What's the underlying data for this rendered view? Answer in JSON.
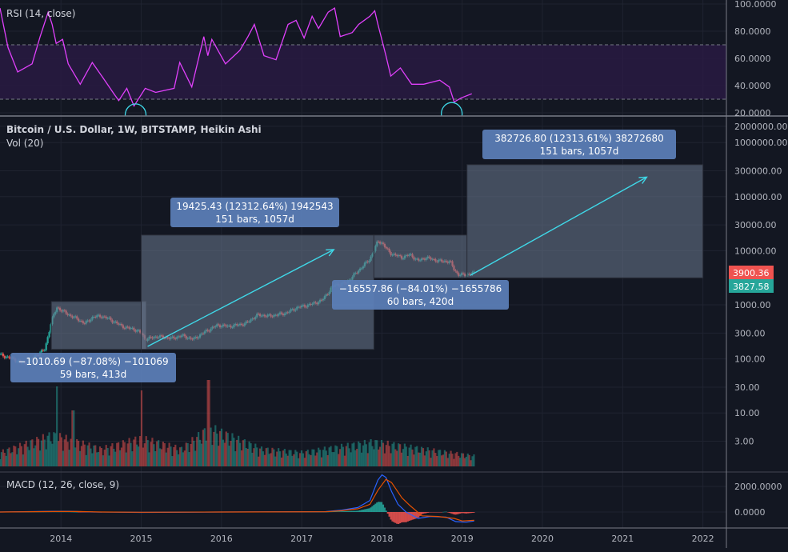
{
  "panes": {
    "rsi_title": "RSI (14, close)",
    "main_title": "Bitcoin / U.S. Dollar, 1W, BITSTAMP, Heikin Ashi",
    "vol_title": "Vol (20)",
    "macd_title": "MACD (12, 26, close, 9)"
  },
  "colors": {
    "background": "#131722",
    "up": "#26a69a",
    "down": "#ef5350",
    "rsi": "#e040fb",
    "rsi_band": "#2a1a45",
    "macd": "#2962ff",
    "signal": "#e65100",
    "annotation": "#3fd8e8",
    "measure_box": "#6b7a8f",
    "tooltip": "#5b7fb8"
  },
  "price_tags": {
    "last": "3900.36",
    "prev": "3827.58"
  },
  "chart_data": [
    {
      "type": "line",
      "title": "RSI (14, close)",
      "yscale": "linear",
      "ylim": [
        20,
        100
      ],
      "yticks": [
        "100.0000",
        "80.0000",
        "60.0000",
        "40.0000",
        "20.0000"
      ],
      "ytick_values": [
        100,
        80,
        60,
        40,
        20
      ],
      "bands": [
        30,
        70
      ],
      "points": [
        [
          2013.24,
          97
        ],
        [
          2013.34,
          68
        ],
        [
          2013.46,
          50
        ],
        [
          2013.64,
          56
        ],
        [
          2013.74,
          76
        ],
        [
          2013.84,
          94
        ],
        [
          2013.89,
          85
        ],
        [
          2013.94,
          71
        ],
        [
          2014.02,
          74
        ],
        [
          2014.09,
          56
        ],
        [
          2014.24,
          41
        ],
        [
          2014.39,
          57
        ],
        [
          2014.52,
          46
        ],
        [
          2014.66,
          34
        ],
        [
          2014.72,
          29
        ],
        [
          2014.82,
          38
        ],
        [
          2014.91,
          25
        ],
        [
          2015.05,
          38
        ],
        [
          2015.18,
          35
        ],
        [
          2015.41,
          38
        ],
        [
          2015.48,
          57
        ],
        [
          2015.63,
          39
        ],
        [
          2015.78,
          76
        ],
        [
          2015.83,
          62
        ],
        [
          2015.88,
          74
        ],
        [
          2016.05,
          56
        ],
        [
          2016.23,
          66
        ],
        [
          2016.33,
          76
        ],
        [
          2016.41,
          85
        ],
        [
          2016.53,
          62
        ],
        [
          2016.68,
          59
        ],
        [
          2016.83,
          85
        ],
        [
          2016.93,
          88
        ],
        [
          2017.03,
          75
        ],
        [
          2017.13,
          91
        ],
        [
          2017.21,
          82
        ],
        [
          2017.33,
          94
        ],
        [
          2017.41,
          97
        ],
        [
          2017.48,
          76
        ],
        [
          2017.63,
          79
        ],
        [
          2017.71,
          85
        ],
        [
          2017.85,
          91
        ],
        [
          2017.91,
          95
        ],
        [
          2017.95,
          85
        ],
        [
          2018.05,
          62
        ],
        [
          2018.11,
          47
        ],
        [
          2018.23,
          53
        ],
        [
          2018.37,
          41
        ],
        [
          2018.52,
          41
        ],
        [
          2018.72,
          44
        ],
        [
          2018.84,
          39
        ],
        [
          2018.9,
          28
        ],
        [
          2018.99,
          31
        ],
        [
          2019.12,
          34
        ]
      ],
      "circled_lows": [
        [
          2014.93,
          23
        ],
        [
          2018.87,
          24
        ]
      ]
    },
    {
      "type": "candlestick",
      "title": "Bitcoin / U.S. Dollar, 1W, BITSTAMP, Heikin Ashi",
      "yscale": "log",
      "yticks": [
        "2000000.00",
        "1000000.00",
        "300000.00",
        "100000.00",
        "30000.00",
        "10000.00",
        "1000.00",
        "300.00",
        "100.00",
        "30.00",
        "10.00",
        "3.00"
      ],
      "ytick_values": [
        2000000,
        1000000,
        300000,
        100000,
        30000,
        10000,
        1000,
        300,
        100,
        30,
        10,
        3
      ],
      "price_path": [
        [
          2013.24,
          120
        ],
        [
          2013.4,
          100
        ],
        [
          2013.55,
          80
        ],
        [
          2013.7,
          120
        ],
        [
          2013.8,
          150
        ],
        [
          2013.88,
          500
        ],
        [
          2013.95,
          900
        ],
        [
          2014.0,
          800
        ],
        [
          2014.1,
          650
        ],
        [
          2014.2,
          550
        ],
        [
          2014.3,
          450
        ],
        [
          2014.4,
          600
        ],
        [
          2014.5,
          620
        ],
        [
          2014.6,
          550
        ],
        [
          2014.7,
          450
        ],
        [
          2014.8,
          380
        ],
        [
          2014.9,
          360
        ],
        [
          2015.0,
          300
        ],
        [
          2015.05,
          230
        ],
        [
          2015.2,
          260
        ],
        [
          2015.4,
          240
        ],
        [
          2015.5,
          270
        ],
        [
          2015.65,
          230
        ],
        [
          2015.8,
          320
        ],
        [
          2015.95,
          420
        ],
        [
          2016.1,
          400
        ],
        [
          2016.3,
          450
        ],
        [
          2016.45,
          650
        ],
        [
          2016.6,
          620
        ],
        [
          2016.8,
          700
        ],
        [
          2016.95,
          900
        ],
        [
          2017.1,
          1000
        ],
        [
          2017.25,
          1200
        ],
        [
          2017.4,
          2300
        ],
        [
          2017.55,
          2500
        ],
        [
          2017.7,
          4200
        ],
        [
          2017.85,
          7000
        ],
        [
          2017.95,
          15000
        ],
        [
          2018.0,
          14000
        ],
        [
          2018.1,
          9000
        ],
        [
          2018.25,
          7500
        ],
        [
          2018.35,
          8500
        ],
        [
          2018.45,
          6500
        ],
        [
          2018.55,
          7500
        ],
        [
          2018.7,
          6500
        ],
        [
          2018.85,
          6300
        ],
        [
          2018.9,
          4500
        ],
        [
          2018.95,
          3600
        ],
        [
          2019.05,
          3600
        ],
        [
          2019.15,
          3900
        ]
      ],
      "volume_levels": [
        [
          2013.24,
          20
        ],
        [
          2013.9,
          45
        ],
        [
          2014.5,
          25
        ],
        [
          2015.0,
          40
        ],
        [
          2015.5,
          25
        ],
        [
          2015.85,
          55
        ],
        [
          2016.5,
          25
        ],
        [
          2017.0,
          20
        ],
        [
          2017.9,
          35
        ],
        [
          2018.5,
          25
        ],
        [
          2019.15,
          15
        ]
      ],
      "volume_spikes": [
        [
          2013.95,
          100
        ],
        [
          2014.15,
          70
        ],
        [
          2015.0,
          95
        ],
        [
          2015.84,
          108
        ]
      ],
      "measurements": [
        {
          "from": [
            2013.88,
            1150
          ],
          "to": [
            2015.06,
            150
          ],
          "line1": "−1010.69 (−87.08%) −101069",
          "line2": "59 bars, 413d"
        },
        {
          "from": [
            2015.0,
            150
          ],
          "to": [
            2017.9,
            19500
          ],
          "line1": "19425.43 (12312.64%) 1942543",
          "line2": "151 bars, 1057d",
          "arrow": [
            [
              2015.08,
              170
            ],
            [
              2017.4,
              10500
            ]
          ]
        },
        {
          "from": [
            2017.9,
            19500
          ],
          "to": [
            2019.06,
            3150
          ],
          "line1": "−16557.86 (−84.01%) −1655786",
          "line2": "60 bars, 420d"
        },
        {
          "from": [
            2019.06,
            3150
          ],
          "to": [
            2022.0,
            390000
          ],
          "line1": "382726.80 (12313.61%) 38272680",
          "line2": "151 bars, 1057d",
          "arrow": [
            [
              2019.1,
              3500
            ],
            [
              2021.3,
              230000
            ]
          ]
        }
      ]
    },
    {
      "type": "line",
      "title": "MACD (12, 26, close, 9)",
      "yticks": [
        "2000.0000",
        "0.0000"
      ],
      "ytick_values": [
        2000,
        0
      ],
      "macd": [
        [
          2013.24,
          0
        ],
        [
          2013.9,
          60
        ],
        [
          2014.1,
          60
        ],
        [
          2014.4,
          0
        ],
        [
          2015.0,
          -30
        ],
        [
          2016.0,
          0
        ],
        [
          2017.3,
          30
        ],
        [
          2017.5,
          150
        ],
        [
          2017.7,
          350
        ],
        [
          2017.85,
          900
        ],
        [
          2017.95,
          2500
        ],
        [
          2018.0,
          2900
        ],
        [
          2018.05,
          2700
        ],
        [
          2018.12,
          1600
        ],
        [
          2018.2,
          600
        ],
        [
          2018.3,
          0
        ],
        [
          2018.45,
          -500
        ],
        [
          2018.6,
          -350
        ],
        [
          2018.8,
          -400
        ],
        [
          2018.92,
          -750
        ],
        [
          2019.05,
          -800
        ],
        [
          2019.15,
          -700
        ]
      ],
      "signal": [
        [
          2013.24,
          0
        ],
        [
          2013.95,
          40
        ],
        [
          2014.2,
          40
        ],
        [
          2014.5,
          0
        ],
        [
          2015.0,
          -20
        ],
        [
          2016.0,
          0
        ],
        [
          2017.3,
          20
        ],
        [
          2017.5,
          100
        ],
        [
          2017.7,
          250
        ],
        [
          2017.85,
          600
        ],
        [
          2017.95,
          1700
        ],
        [
          2018.05,
          2550
        ],
        [
          2018.12,
          2300
        ],
        [
          2018.25,
          1100
        ],
        [
          2018.35,
          500
        ],
        [
          2018.5,
          -300
        ],
        [
          2018.7,
          -350
        ],
        [
          2018.9,
          -500
        ],
        [
          2019.0,
          -700
        ],
        [
          2019.15,
          -650
        ]
      ]
    }
  ],
  "time_axis": {
    "labels": [
      "2014",
      "2015",
      "2016",
      "2017",
      "2018",
      "2019",
      "2020",
      "2021",
      "2022"
    ],
    "values": [
      2014,
      2015,
      2016,
      2017,
      2018,
      2019,
      2020,
      2021,
      2022
    ]
  }
}
